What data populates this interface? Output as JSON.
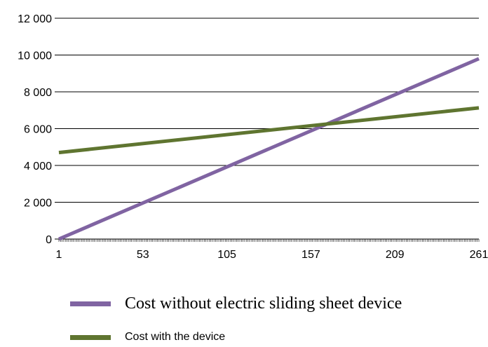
{
  "chart_data": {
    "type": "line",
    "x_ticks": [
      "1",
      "53",
      "105",
      "157",
      "209",
      "261"
    ],
    "y_ticks": [
      "0",
      "2 000",
      "4 000",
      "6 000",
      "8 000",
      "10 000",
      "12 000"
    ],
    "xlim": [
      1,
      261
    ],
    "ylim": [
      0,
      12000
    ],
    "grid": true,
    "legend_position": "bottom",
    "series": [
      {
        "name": "Cost without electric sliding sheet device",
        "color": "#8064a2",
        "x": [
          1,
          261
        ],
        "values": [
          0,
          9800
        ]
      },
      {
        "name": "Cost with the device",
        "color": "#5f7530",
        "x": [
          1,
          261
        ],
        "values": [
          4700,
          7130
        ]
      }
    ]
  }
}
